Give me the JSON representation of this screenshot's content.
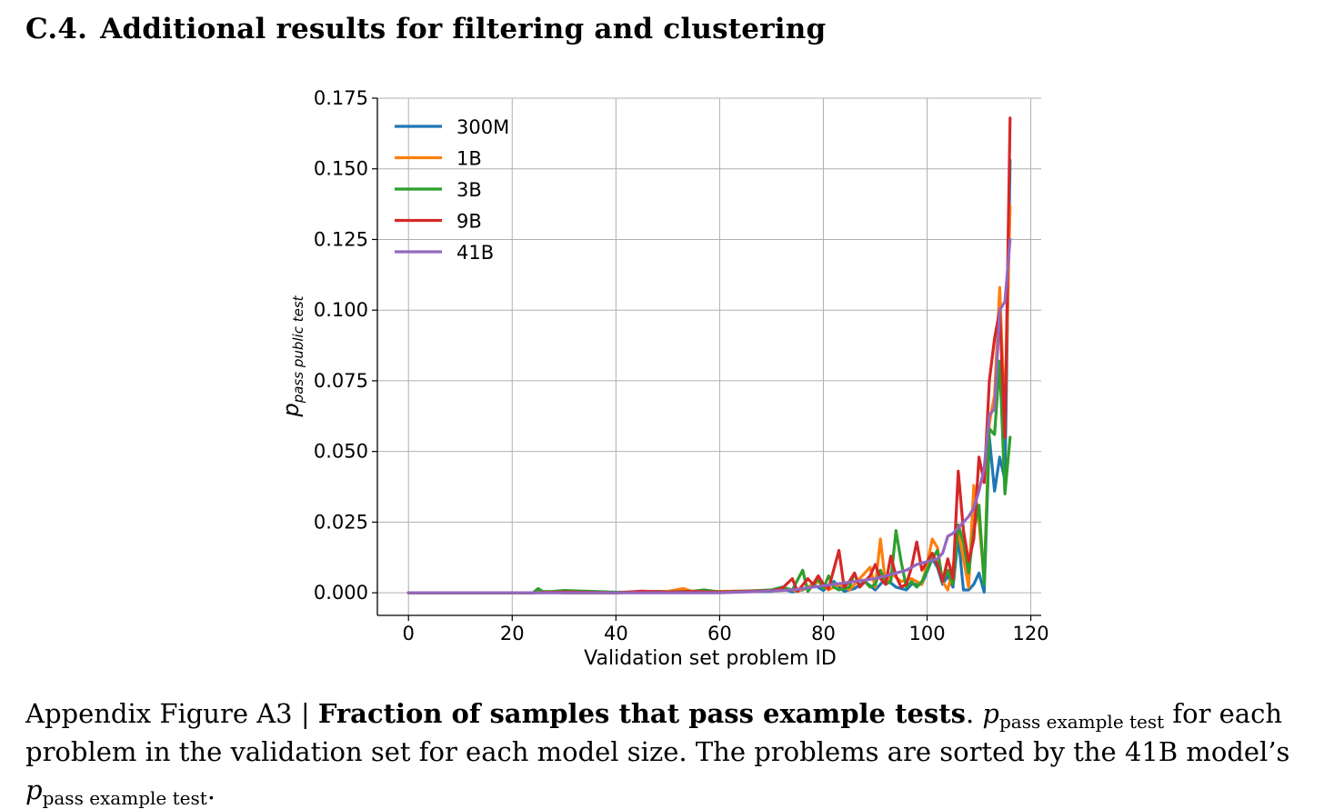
{
  "section": {
    "number": "C.4.",
    "title": "Additional results for filtering and clustering"
  },
  "chart_data": {
    "type": "line",
    "title": "",
    "xlabel": "Validation set problem ID",
    "ylabel_symbol": "p",
    "ylabel_subscript": "pass public test",
    "xlim": [
      -6,
      122
    ],
    "ylim": [
      -0.008,
      0.175
    ],
    "xticks": [
      0,
      20,
      40,
      60,
      80,
      100,
      120
    ],
    "yticks": [
      0.0,
      0.025,
      0.05,
      0.075,
      0.1,
      0.125,
      0.15,
      0.175
    ],
    "ytick_labels": [
      "0.000",
      "0.025",
      "0.050",
      "0.075",
      "0.100",
      "0.125",
      "0.150",
      "0.175"
    ],
    "grid": true,
    "legend_position": "top-left",
    "series": [
      {
        "name": "300M",
        "color": "#1f77b4",
        "points": [
          [
            0,
            0
          ],
          [
            24,
            0
          ],
          [
            25,
            0.0005
          ],
          [
            30,
            0
          ],
          [
            40,
            0
          ],
          [
            48,
            0.0005
          ],
          [
            60,
            0.0003
          ],
          [
            70,
            0.0005
          ],
          [
            72,
            0.0015
          ],
          [
            74,
            0.0003
          ],
          [
            76,
            0.001
          ],
          [
            78,
            0.003
          ],
          [
            80,
            0.0008
          ],
          [
            82,
            0.004
          ],
          [
            84,
            0.0005
          ],
          [
            86,
            0.0015
          ],
          [
            88,
            0.004
          ],
          [
            90,
            0.001
          ],
          [
            92,
            0.005
          ],
          [
            94,
            0.002
          ],
          [
            96,
            0.001
          ],
          [
            97,
            0.003
          ],
          [
            99,
            0.003
          ],
          [
            101,
            0.012
          ],
          [
            102,
            0.009
          ],
          [
            103,
            0.003
          ],
          [
            104,
            0.006
          ],
          [
            105,
            0.002
          ],
          [
            106,
            0.02
          ],
          [
            107,
            0.001
          ],
          [
            108,
            0.001
          ],
          [
            109,
            0.003
          ],
          [
            110,
            0.007
          ],
          [
            111,
            0.0002
          ],
          [
            112,
            0.055
          ],
          [
            113,
            0.036
          ],
          [
            114,
            0.048
          ],
          [
            115,
            0.04
          ],
          [
            116,
            0.153
          ]
        ]
      },
      {
        "name": "1B",
        "color": "#ff7f0e",
        "points": [
          [
            0,
            0
          ],
          [
            24,
            0
          ],
          [
            26,
            0.0005
          ],
          [
            30,
            0
          ],
          [
            40,
            0
          ],
          [
            50,
            0.0005
          ],
          [
            53,
            0.0015
          ],
          [
            55,
            0.0003
          ],
          [
            60,
            0.0005
          ],
          [
            70,
            0.0008
          ],
          [
            73,
            0.0015
          ],
          [
            75,
            0.0005
          ],
          [
            77,
            0.002
          ],
          [
            79,
            0.004
          ],
          [
            81,
            0.001
          ],
          [
            83,
            0.003
          ],
          [
            85,
            0.001
          ],
          [
            87,
            0.005
          ],
          [
            89,
            0.009
          ],
          [
            90,
            0.002
          ],
          [
            91,
            0.019
          ],
          [
            92,
            0.003
          ],
          [
            93,
            0.007
          ],
          [
            95,
            0.004
          ],
          [
            97,
            0.005
          ],
          [
            99,
            0.003
          ],
          [
            100,
            0.01
          ],
          [
            101,
            0.019
          ],
          [
            102,
            0.016
          ],
          [
            103,
            0.004
          ],
          [
            104,
            0.001
          ],
          [
            105,
            0.009
          ],
          [
            106,
            0.022
          ],
          [
            107,
            0.012
          ],
          [
            108,
            0.002
          ],
          [
            109,
            0.038
          ],
          [
            110,
            0.025
          ],
          [
            111,
            0.005
          ],
          [
            112,
            0.06
          ],
          [
            113,
            0.07
          ],
          [
            114,
            0.108
          ],
          [
            115,
            0.06
          ],
          [
            116,
            0.137
          ]
        ]
      },
      {
        "name": "3B",
        "color": "#2ca02c",
        "points": [
          [
            0,
            0
          ],
          [
            24,
            0
          ],
          [
            25,
            0.0015
          ],
          [
            26,
            0.0003
          ],
          [
            28,
            0.0005
          ],
          [
            30,
            0.0008
          ],
          [
            40,
            0.0002
          ],
          [
            50,
            0.0003
          ],
          [
            55,
            0.0006
          ],
          [
            57,
            0.001
          ],
          [
            60,
            0.0003
          ],
          [
            65,
            0.0006
          ],
          [
            70,
            0.001
          ],
          [
            72,
            0.002
          ],
          [
            74,
            0.001
          ],
          [
            76,
            0.008
          ],
          [
            77,
            0.0005
          ],
          [
            79,
            0.005
          ],
          [
            80,
            0.0015
          ],
          [
            81,
            0.006
          ],
          [
            82,
            0.002
          ],
          [
            83,
            0.001
          ],
          [
            85,
            0.002
          ],
          [
            86,
            0.007
          ],
          [
            87,
            0.002
          ],
          [
            88,
            0.004
          ],
          [
            89,
            0.002
          ],
          [
            90,
            0.003
          ],
          [
            91,
            0.008
          ],
          [
            92,
            0.003
          ],
          [
            93,
            0.004
          ],
          [
            94,
            0.022
          ],
          [
            95,
            0.011
          ],
          [
            96,
            0.002
          ],
          [
            97,
            0.004
          ],
          [
            98,
            0.002
          ],
          [
            99,
            0.004
          ],
          [
            100,
            0.008
          ],
          [
            101,
            0.012
          ],
          [
            102,
            0.015
          ],
          [
            103,
            0.004
          ],
          [
            104,
            0.008
          ],
          [
            105,
            0.003
          ],
          [
            106,
            0.024
          ],
          [
            107,
            0.018
          ],
          [
            108,
            0.007
          ],
          [
            109,
            0.022
          ],
          [
            110,
            0.031
          ],
          [
            111,
            0.003
          ],
          [
            112,
            0.058
          ],
          [
            113,
            0.056
          ],
          [
            114,
            0.082
          ],
          [
            115,
            0.035
          ],
          [
            116,
            0.055
          ]
        ]
      },
      {
        "name": "9B",
        "color": "#d62728",
        "points": [
          [
            0,
            0
          ],
          [
            24,
            0
          ],
          [
            30,
            0.0003
          ],
          [
            40,
            0
          ],
          [
            45,
            0.0006
          ],
          [
            50,
            0.0002
          ],
          [
            55,
            0.0005
          ],
          [
            60,
            0.0002
          ],
          [
            65,
            0.0005
          ],
          [
            70,
            0.0007
          ],
          [
            72,
            0.0015
          ],
          [
            74,
            0.005
          ],
          [
            75,
            0.0005
          ],
          [
            77,
            0.005
          ],
          [
            78,
            0.003
          ],
          [
            79,
            0.006
          ],
          [
            80,
            0.003
          ],
          [
            81,
            0.0015
          ],
          [
            83,
            0.015
          ],
          [
            84,
            0.002
          ],
          [
            85,
            0.004
          ],
          [
            86,
            0.007
          ],
          [
            87,
            0.002
          ],
          [
            89,
            0.006
          ],
          [
            90,
            0.01
          ],
          [
            91,
            0.005
          ],
          [
            92,
            0.003
          ],
          [
            93,
            0.013
          ],
          [
            94,
            0.006
          ],
          [
            95,
            0.002
          ],
          [
            96,
            0.003
          ],
          [
            97,
            0.009
          ],
          [
            98,
            0.018
          ],
          [
            99,
            0.008
          ],
          [
            100,
            0.011
          ],
          [
            101,
            0.014
          ],
          [
            102,
            0.01
          ],
          [
            103,
            0.004
          ],
          [
            104,
            0.012
          ],
          [
            105,
            0.005
          ],
          [
            106,
            0.043
          ],
          [
            107,
            0.022
          ],
          [
            108,
            0.011
          ],
          [
            109,
            0.019
          ],
          [
            110,
            0.048
          ],
          [
            111,
            0.039
          ],
          [
            112,
            0.075
          ],
          [
            113,
            0.09
          ],
          [
            114,
            0.1
          ],
          [
            115,
            0.055
          ],
          [
            116,
            0.168
          ]
        ]
      },
      {
        "name": "41B",
        "color": "#9467bd",
        "points": [
          [
            0,
            0
          ],
          [
            60,
            0
          ],
          [
            68,
            0.0005
          ],
          [
            72,
            0.0008
          ],
          [
            75,
            0.0012
          ],
          [
            78,
            0.002
          ],
          [
            82,
            0.003
          ],
          [
            86,
            0.004
          ],
          [
            90,
            0.005
          ],
          [
            94,
            0.007
          ],
          [
            96,
            0.008
          ],
          [
            98,
            0.01
          ],
          [
            100,
            0.011
          ],
          [
            102,
            0.012
          ],
          [
            103,
            0.014
          ],
          [
            104,
            0.02
          ],
          [
            105,
            0.021
          ],
          [
            106,
            0.023
          ],
          [
            107,
            0.025
          ],
          [
            108,
            0.027
          ],
          [
            109,
            0.03
          ],
          [
            110,
            0.036
          ],
          [
            111,
            0.044
          ],
          [
            112,
            0.063
          ],
          [
            113,
            0.065
          ],
          [
            114,
            0.1
          ],
          [
            115,
            0.103
          ],
          [
            116,
            0.125
          ]
        ]
      }
    ]
  },
  "caption": {
    "label": "Appendix Figure A3 |",
    "bold_title": "Fraction of samples that pass example tests",
    "period": ".",
    "p_symbol": "p",
    "p_subscript": "pass example test",
    "text_1": "for each problem in the validation set for each model size. The problems are sorted by the 41B model’s",
    "text_end": "."
  }
}
